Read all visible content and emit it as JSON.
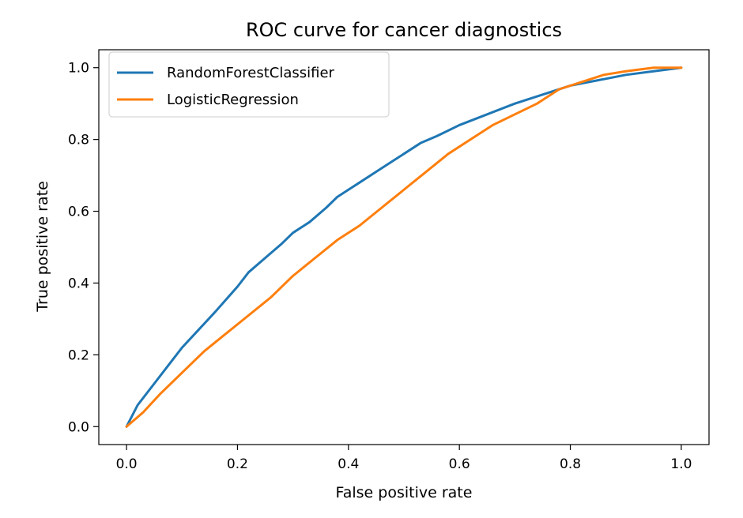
{
  "chart_data": {
    "type": "line",
    "title": "ROC curve for cancer diagnostics",
    "xlabel": "False positive rate",
    "ylabel": "True positive rate",
    "xlim": [
      -0.05,
      1.05
    ],
    "ylim": [
      -0.05,
      1.05
    ],
    "xticks": [
      "0.0",
      "0.2",
      "0.4",
      "0.6",
      "0.8",
      "1.0"
    ],
    "yticks": [
      "0.0",
      "0.2",
      "0.4",
      "0.6",
      "0.8",
      "1.0"
    ],
    "grid": false,
    "legend_position": "upper left",
    "series": [
      {
        "name": "RandomForestClassifier",
        "color": "#1f77b4",
        "x": [
          0.0,
          0.02,
          0.05,
          0.08,
          0.1,
          0.13,
          0.16,
          0.2,
          0.22,
          0.25,
          0.28,
          0.3,
          0.33,
          0.36,
          0.38,
          0.4,
          0.42,
          0.45,
          0.48,
          0.5,
          0.53,
          0.56,
          0.6,
          0.65,
          0.7,
          0.75,
          0.8,
          0.85,
          0.9,
          0.95,
          1.0
        ],
        "y": [
          0.0,
          0.06,
          0.12,
          0.18,
          0.22,
          0.27,
          0.32,
          0.39,
          0.43,
          0.47,
          0.51,
          0.54,
          0.57,
          0.61,
          0.64,
          0.66,
          0.68,
          0.71,
          0.74,
          0.76,
          0.79,
          0.81,
          0.84,
          0.87,
          0.9,
          0.925,
          0.95,
          0.965,
          0.98,
          0.99,
          1.0
        ]
      },
      {
        "name": "LogisticRegression",
        "color": "#ff7f0e",
        "x": [
          0.0,
          0.03,
          0.06,
          0.1,
          0.14,
          0.18,
          0.22,
          0.26,
          0.3,
          0.34,
          0.38,
          0.42,
          0.46,
          0.5,
          0.54,
          0.58,
          0.62,
          0.66,
          0.7,
          0.74,
          0.78,
          0.82,
          0.86,
          0.9,
          0.95,
          1.0
        ],
        "y": [
          0.0,
          0.04,
          0.09,
          0.15,
          0.21,
          0.26,
          0.31,
          0.36,
          0.42,
          0.47,
          0.52,
          0.56,
          0.61,
          0.66,
          0.71,
          0.76,
          0.8,
          0.84,
          0.87,
          0.9,
          0.94,
          0.96,
          0.98,
          0.99,
          1.0,
          1.0
        ]
      }
    ]
  }
}
